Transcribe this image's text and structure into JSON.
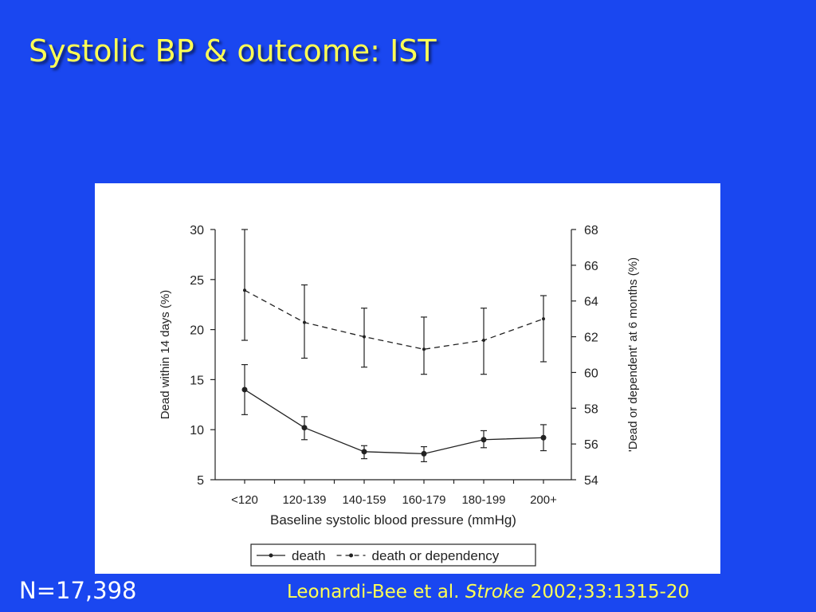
{
  "slide": {
    "title": "Systolic BP & outcome: IST",
    "sample_size": "N=17,398",
    "citation": {
      "authors": "Leonardi-Bee et al.",
      "journal": "Stroke",
      "details": "2002;33:1315-20"
    },
    "colors": {
      "background": "#1a47f0",
      "title": "#ffff55",
      "citation": "#ffff55",
      "sample_size": "#ffffff"
    }
  },
  "chart_data": {
    "type": "line",
    "xlabel": "Baseline systolic blood pressure (mmHg)",
    "categories": [
      "<120",
      "120-139",
      "140-159",
      "160-179",
      "180-199",
      "200+"
    ],
    "y_left": {
      "label": "Dead within 14 days (%)",
      "ylim": [
        5,
        30
      ],
      "ticks": [
        5,
        10,
        15,
        20,
        25,
        30
      ]
    },
    "y_right": {
      "label": "'Dead or dependent' at 6 months (%)",
      "ylim": [
        54,
        68
      ],
      "ticks": [
        54,
        56,
        58,
        60,
        62,
        64,
        66,
        68
      ]
    },
    "grid": false,
    "legend_position": "bottom",
    "series": [
      {
        "name": "death",
        "axis": "left",
        "line_style": "solid",
        "values": [
          14.0,
          10.2,
          7.8,
          7.6,
          9.0,
          9.2
        ],
        "error_low": [
          11.5,
          9.0,
          7.1,
          6.8,
          8.2,
          7.9
        ],
        "error_high": [
          16.5,
          11.3,
          8.4,
          8.3,
          9.9,
          10.5
        ]
      },
      {
        "name": "death or dependency",
        "axis": "right",
        "line_style": "dashed",
        "values": [
          64.6,
          62.8,
          62.0,
          61.3,
          61.8,
          63.0
        ],
        "error_low": [
          61.8,
          60.8,
          60.3,
          59.9,
          59.9,
          60.6
        ],
        "error_high": [
          68.0,
          64.9,
          63.6,
          63.1,
          63.6,
          64.3
        ]
      }
    ]
  }
}
